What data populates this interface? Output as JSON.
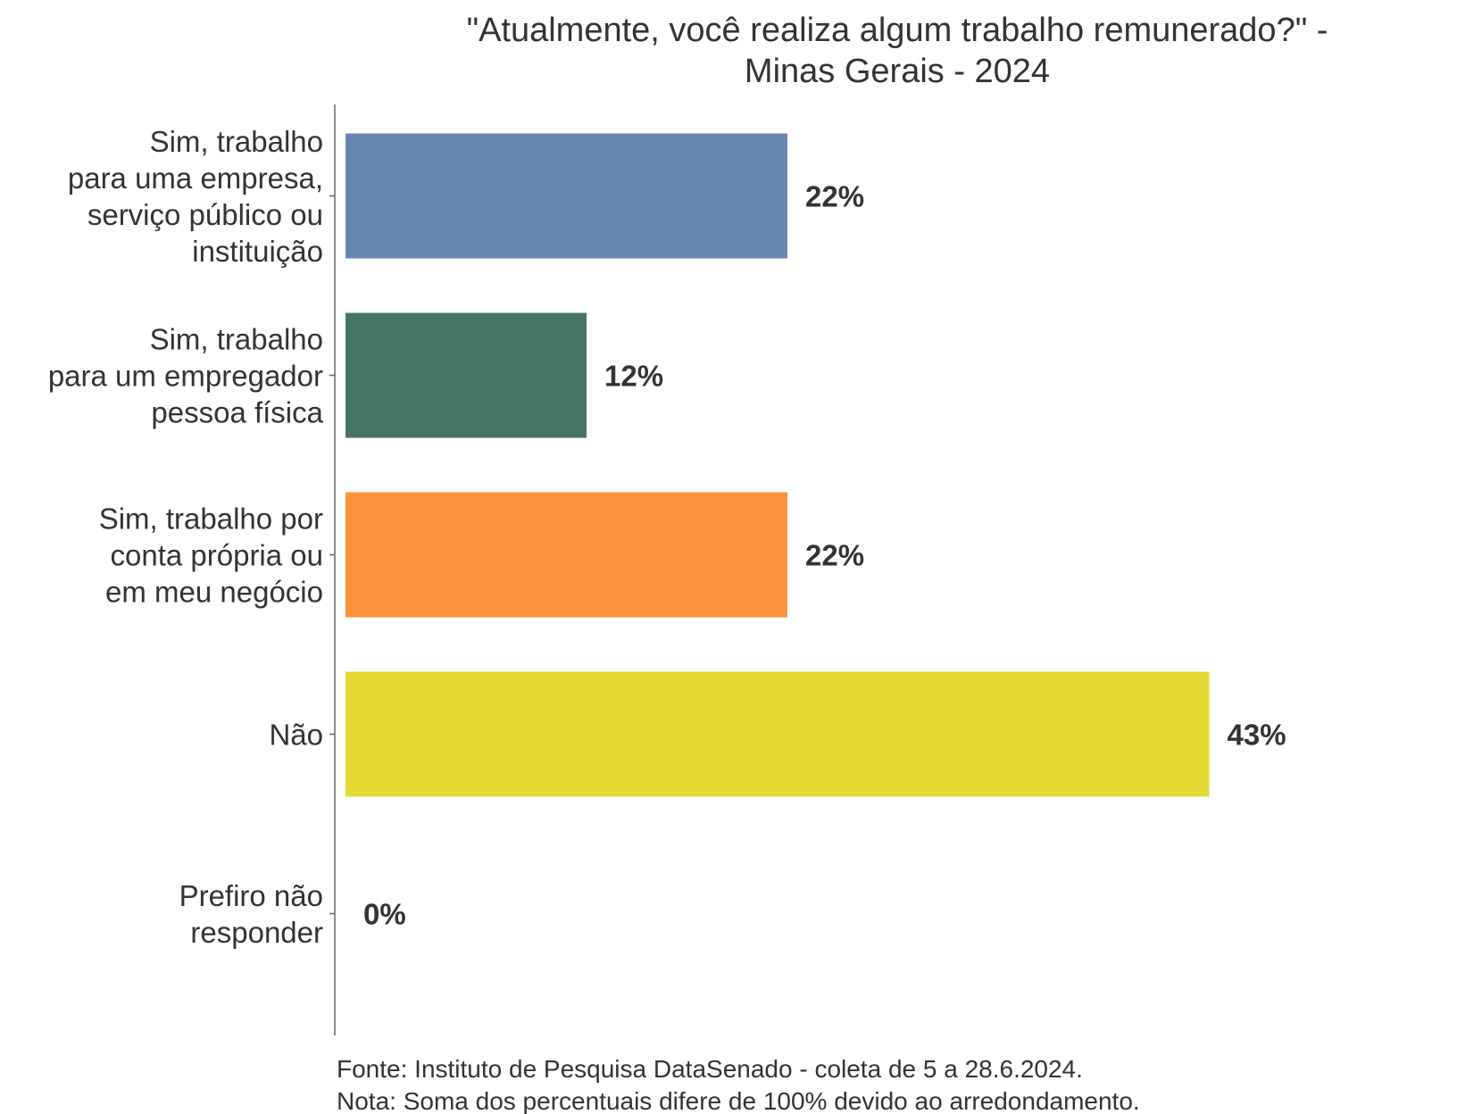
{
  "chart_data": {
    "type": "bar",
    "orientation": "horizontal",
    "title": "\"Atualmente, você realiza algum trabalho remunerado?\" - Minas Gerais - 2024",
    "title_lines": [
      "\"Atualmente, você realiza algum trabalho remunerado?\" -",
      "Minas Gerais - 2024"
    ],
    "categories": [
      "Sim, trabalho para uma empresa, serviço público ou instituição",
      "Sim, trabalho para um empregador pessoa física",
      "Sim, trabalho por conta própria ou em meu negócio",
      "Não",
      "Prefiro não responder"
    ],
    "category_lines": [
      [
        "Sim, trabalho",
        "para uma empresa,",
        "serviço público ou",
        "instituição"
      ],
      [
        "Sim, trabalho",
        "para um empregador",
        "pessoa física"
      ],
      [
        "Sim, trabalho por",
        "conta própria ou",
        "em meu negócio"
      ],
      [
        "Não"
      ],
      [
        "Prefiro não",
        "responder"
      ]
    ],
    "values": [
      22,
      12,
      22,
      43,
      0
    ],
    "value_labels": [
      "22%",
      "12%",
      "22%",
      "43%",
      "0%"
    ],
    "colors": [
      "#6688b0",
      "#467663",
      "#fb923e",
      "#e5d936",
      "#cccccc"
    ],
    "xlim": [
      0,
      50
    ],
    "grid": false,
    "legend": "none",
    "caption_lines": [
      "Fonte: Instituto de Pesquisa DataSenado - coleta de 5 a 28.6.2024.",
      "Nota: Soma dos percentuais difere de 100% devido ao arredondamento."
    ]
  }
}
